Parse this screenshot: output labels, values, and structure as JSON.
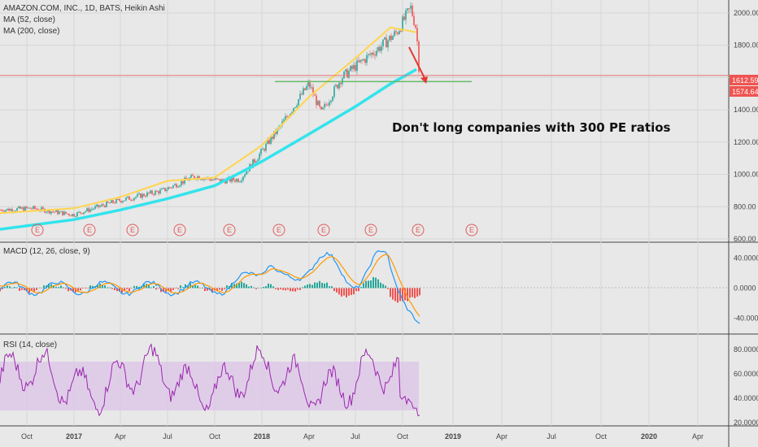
{
  "header": {
    "symbol_line": "AMAZON.COM, INC., 1D, BATS, Heikin Ashi",
    "ma52": "MA (52, close)",
    "ma200": "MA (200, close)"
  },
  "macd_pane": {
    "title": "MACD (12, 26, close, 9)"
  },
  "rsi_pane": {
    "title": "RSI (14, close)"
  },
  "annotation": "Don't long companies with 300 PE ratios",
  "price_tags": {
    "upper": "1612.59",
    "lower": "1574.64"
  },
  "earnings_marker_label": "E",
  "colors": {
    "up": "#26a69a",
    "down": "#ef5350",
    "ma52": "#ffd54f",
    "ma200": "#33e3ec",
    "macd": "#2196f3",
    "signal": "#ff9800",
    "rsi": "#9c27b0",
    "rsi_band": "#e1bee7",
    "support": "#4caf50",
    "tag_upper": "#ef5350",
    "tag_lower": "#ef5350"
  },
  "chart_data": [
    {
      "type": "line",
      "title": "AMAZON.COM, INC., 1D, BATS, Heikin Ashi",
      "x_ticks": [
        "Oct",
        "2017",
        "Apr",
        "Jul",
        "Oct",
        "2018",
        "Apr",
        "Jul",
        "Oct",
        "2019",
        "Apr",
        "Jul",
        "Oct",
        "2020",
        "Apr"
      ],
      "y_ticks": [
        600,
        800,
        1000,
        1200,
        1400,
        1600,
        1800,
        2000
      ],
      "ylim": [
        580,
        2080
      ],
      "series": [
        {
          "name": "MA (52, close)",
          "x": [
            "Sep 2016",
            "Jan 2017",
            "Apr 2017",
            "Jul 2017",
            "Oct 2017",
            "Jan 2018",
            "Apr 2018",
            "Jul 2018",
            "Sep 2018",
            "Oct 2018"
          ],
          "values": [
            760,
            790,
            860,
            960,
            980,
            1180,
            1480,
            1720,
            1910,
            1880
          ]
        },
        {
          "name": "MA (200, close)",
          "x": [
            "Sep 2016",
            "Jan 2017",
            "Apr 2017",
            "Jul 2017",
            "Oct 2017",
            "Jan 2018",
            "Apr 2018",
            "Jul 2018",
            "Sep 2018",
            "Oct 2018"
          ],
          "values": [
            660,
            720,
            780,
            850,
            930,
            1080,
            1250,
            1420,
            1560,
            1650
          ]
        }
      ],
      "price_points": {
        "x": [
          "Sep 2016",
          "Nov 2016",
          "Jan 2017",
          "Mar 2017",
          "May 2017",
          "Jun 2017",
          "Aug 2017",
          "Oct 2017",
          "Nov 2017",
          "Jan 2018",
          "Feb 2018",
          "Mar 2018",
          "Apr 2018",
          "May 2018",
          "Jun 2018",
          "Jul 2018",
          "Aug 2018",
          "Sep 2018",
          "Oct 2018",
          "Oct 2018 b"
        ],
        "values": [
          780,
          790,
          750,
          830,
          900,
          990,
          960,
          970,
          1130,
          1300,
          1450,
          1560,
          1380,
          1600,
          1700,
          1800,
          1880,
          2030,
          1900,
          1590
        ]
      },
      "support_level": 1574.64,
      "last_price": 1612.59
    },
    {
      "type": "line",
      "title": "MACD (12, 26, close, 9)",
      "y_ticks": [
        "40.0000",
        "0.0000",
        "-40.0000"
      ],
      "ylim": [
        -60,
        60
      ]
    },
    {
      "type": "line",
      "title": "RSI (14, close)",
      "y_ticks": [
        "80.0000",
        "60.0000",
        "40.0000",
        "20.0000"
      ],
      "ylim": [
        18,
        92
      ],
      "band": [
        30,
        70
      ]
    }
  ]
}
